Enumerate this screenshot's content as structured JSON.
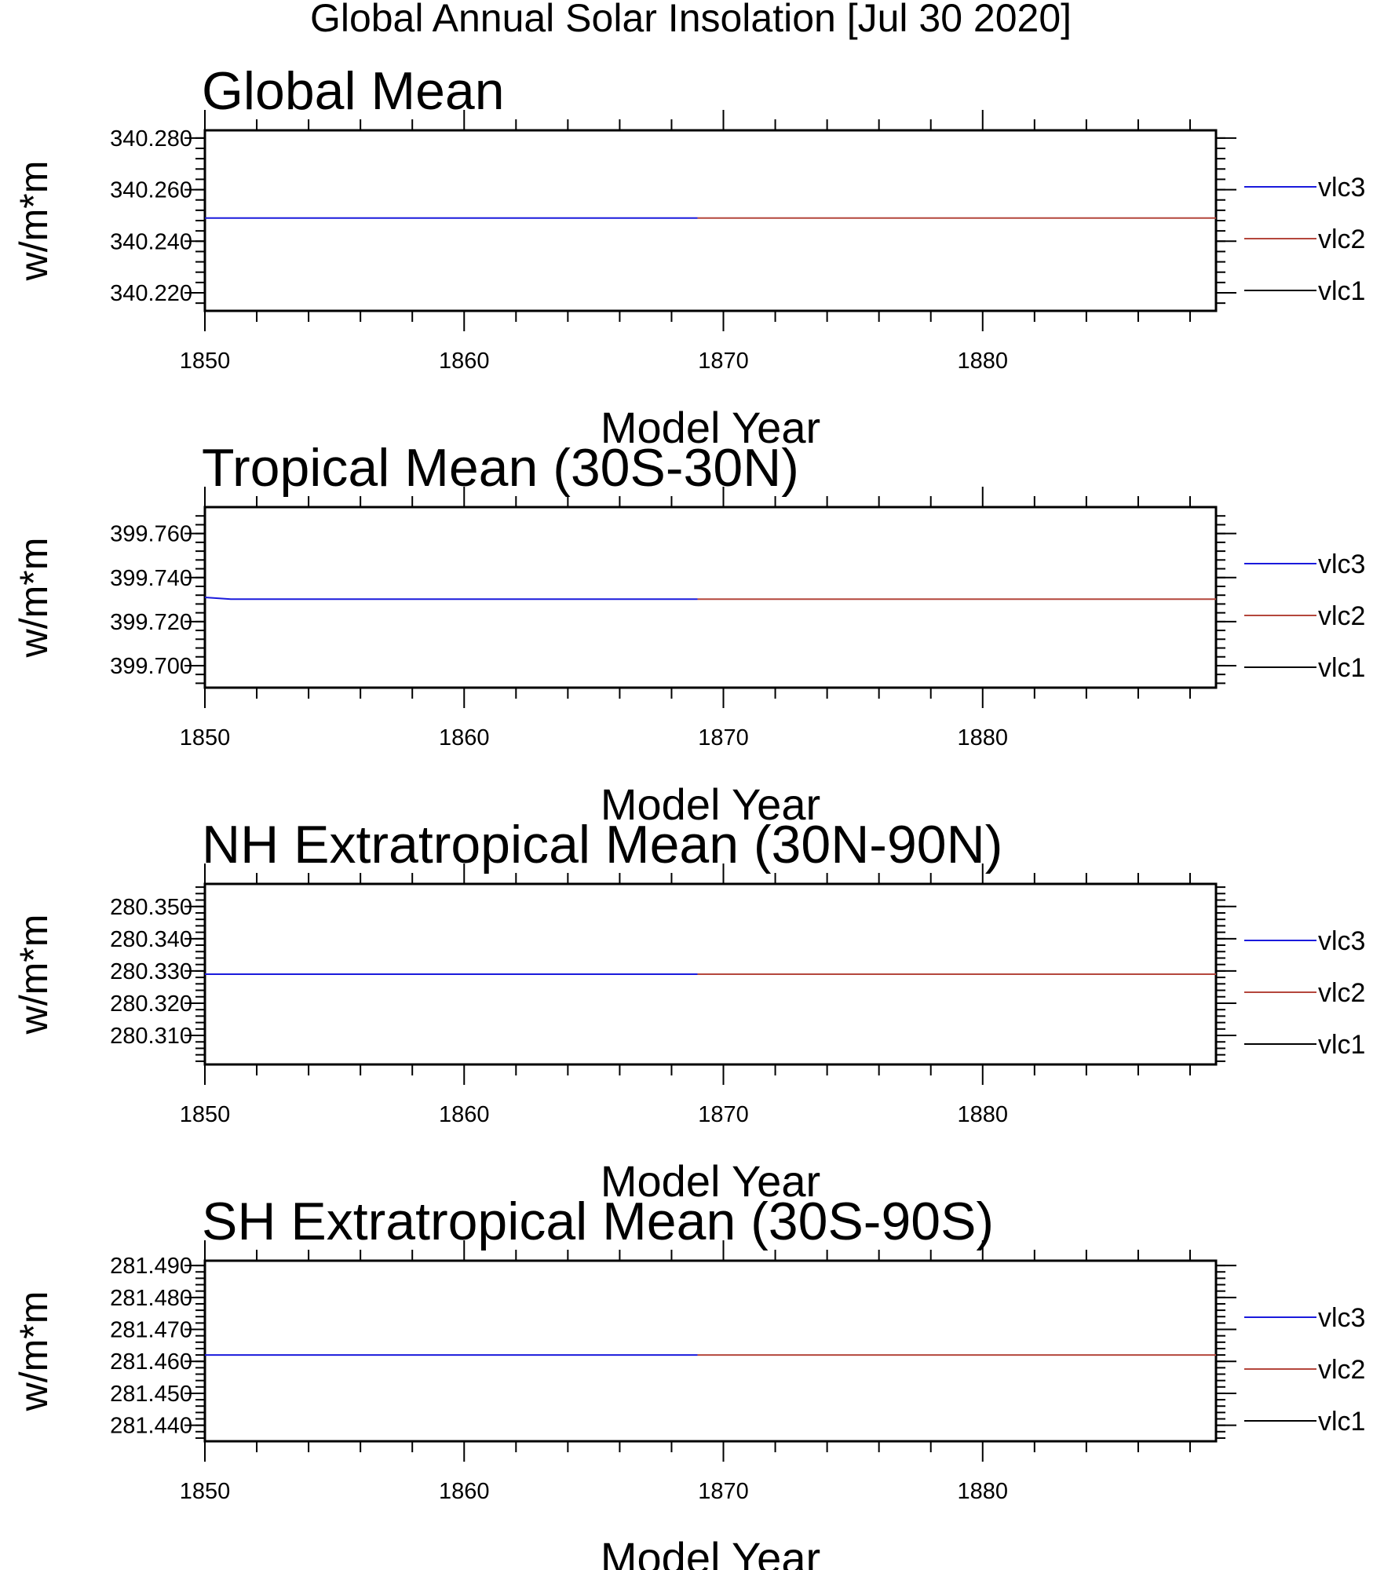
{
  "title": "Global Annual Solar Insolation [Jul 30 2020]",
  "colors": {
    "vlc3": "#1a1adc",
    "vlc2": "#b4463c",
    "vlc1": "#000000",
    "frame": "#000000"
  },
  "chart_data": [
    {
      "type": "line",
      "title": "Global Mean",
      "xlabel": "Model Year",
      "ylabel": "w/m*m",
      "xlim": [
        1850,
        1889
      ],
      "ylim": [
        340.213,
        340.283
      ],
      "xticks": [
        1850,
        1860,
        1870,
        1880
      ],
      "xtick_labels": [
        "1850",
        "1860",
        "1870",
        "1880"
      ],
      "yticks": [
        340.22,
        340.24,
        340.26,
        340.28
      ],
      "ytick_labels": [
        "340.220",
        "340.240",
        "340.260",
        "340.280"
      ],
      "yminor_step": 0.004,
      "series": [
        {
          "name": "vlc3",
          "color": "#1a1adc",
          "x": [
            1850,
            1869
          ],
          "y": [
            340.249,
            340.249
          ]
        },
        {
          "name": "vlc2",
          "color": "#b4463c",
          "x": [
            1869,
            1889
          ],
          "y": [
            340.249,
            340.249
          ]
        },
        {
          "name": "vlc1",
          "color": "#000000",
          "x": [],
          "y": []
        }
      ],
      "legend": [
        "vlc3",
        "vlc2",
        "vlc1"
      ],
      "legend_placement": "right"
    },
    {
      "type": "line",
      "title": "Tropical Mean (30S-30N)",
      "xlabel": "Model Year",
      "ylabel": "w/m*m",
      "xlim": [
        1850,
        1889
      ],
      "ylim": [
        399.69,
        399.772
      ],
      "xticks": [
        1850,
        1860,
        1870,
        1880
      ],
      "xtick_labels": [
        "1850",
        "1860",
        "1870",
        "1880"
      ],
      "yticks": [
        399.7,
        399.72,
        399.74,
        399.76
      ],
      "ytick_labels": [
        "399.700",
        "399.720",
        "399.740",
        "399.760"
      ],
      "yminor_step": 0.004,
      "series": [
        {
          "name": "vlc3",
          "color": "#1a1adc",
          "x": [
            1850,
            1851,
            1852,
            1869
          ],
          "y": [
            399.731,
            399.7302,
            399.7302,
            399.7302
          ]
        },
        {
          "name": "vlc2",
          "color": "#b4463c",
          "x": [
            1869,
            1889
          ],
          "y": [
            399.7302,
            399.7302
          ]
        },
        {
          "name": "vlc1",
          "color": "#000000",
          "x": [],
          "y": []
        }
      ],
      "legend": [
        "vlc3",
        "vlc2",
        "vlc1"
      ],
      "legend_placement": "right"
    },
    {
      "type": "line",
      "title": "NH Extratropical Mean (30N-90N)",
      "xlabel": "Model Year",
      "ylabel": "w/m*m",
      "xlim": [
        1850,
        1889
      ],
      "ylim": [
        280.301,
        280.357
      ],
      "xticks": [
        1850,
        1860,
        1870,
        1880
      ],
      "xtick_labels": [
        "1850",
        "1860",
        "1870",
        "1880"
      ],
      "yticks": [
        280.31,
        280.32,
        280.33,
        280.34,
        280.35
      ],
      "ytick_labels": [
        "280.310",
        "280.320",
        "280.330",
        "280.340",
        "280.350"
      ],
      "yminor_step": 0.002,
      "series": [
        {
          "name": "vlc3",
          "color": "#1a1adc",
          "x": [
            1850,
            1869
          ],
          "y": [
            280.329,
            280.329
          ]
        },
        {
          "name": "vlc2",
          "color": "#b4463c",
          "x": [
            1869,
            1889
          ],
          "y": [
            280.329,
            280.329
          ]
        },
        {
          "name": "vlc1",
          "color": "#000000",
          "x": [],
          "y": []
        }
      ],
      "legend": [
        "vlc3",
        "vlc2",
        "vlc1"
      ],
      "legend_placement": "right"
    },
    {
      "type": "line",
      "title": "SH Extratropical Mean (30S-90S)",
      "xlabel": "Model Year",
      "ylabel": "w/m*m",
      "xlim": [
        1850,
        1889
      ],
      "ylim": [
        281.435,
        281.4915
      ],
      "xticks": [
        1850,
        1860,
        1870,
        1880
      ],
      "xtick_labels": [
        "1850",
        "1860",
        "1870",
        "1880"
      ],
      "yticks": [
        281.44,
        281.45,
        281.46,
        281.47,
        281.48,
        281.49
      ],
      "ytick_labels": [
        "281.440",
        "281.450",
        "281.460",
        "281.470",
        "281.480",
        "281.490"
      ],
      "yminor_step": 0.002,
      "series": [
        {
          "name": "vlc3",
          "color": "#1a1adc",
          "x": [
            1850,
            1869
          ],
          "y": [
            281.462,
            281.462
          ]
        },
        {
          "name": "vlc2",
          "color": "#b4463c",
          "x": [
            1869,
            1889
          ],
          "y": [
            281.462,
            281.462
          ]
        },
        {
          "name": "vlc1",
          "color": "#000000",
          "x": [],
          "y": []
        }
      ],
      "legend": [
        "vlc3",
        "vlc2",
        "vlc1"
      ],
      "legend_placement": "right"
    }
  ]
}
